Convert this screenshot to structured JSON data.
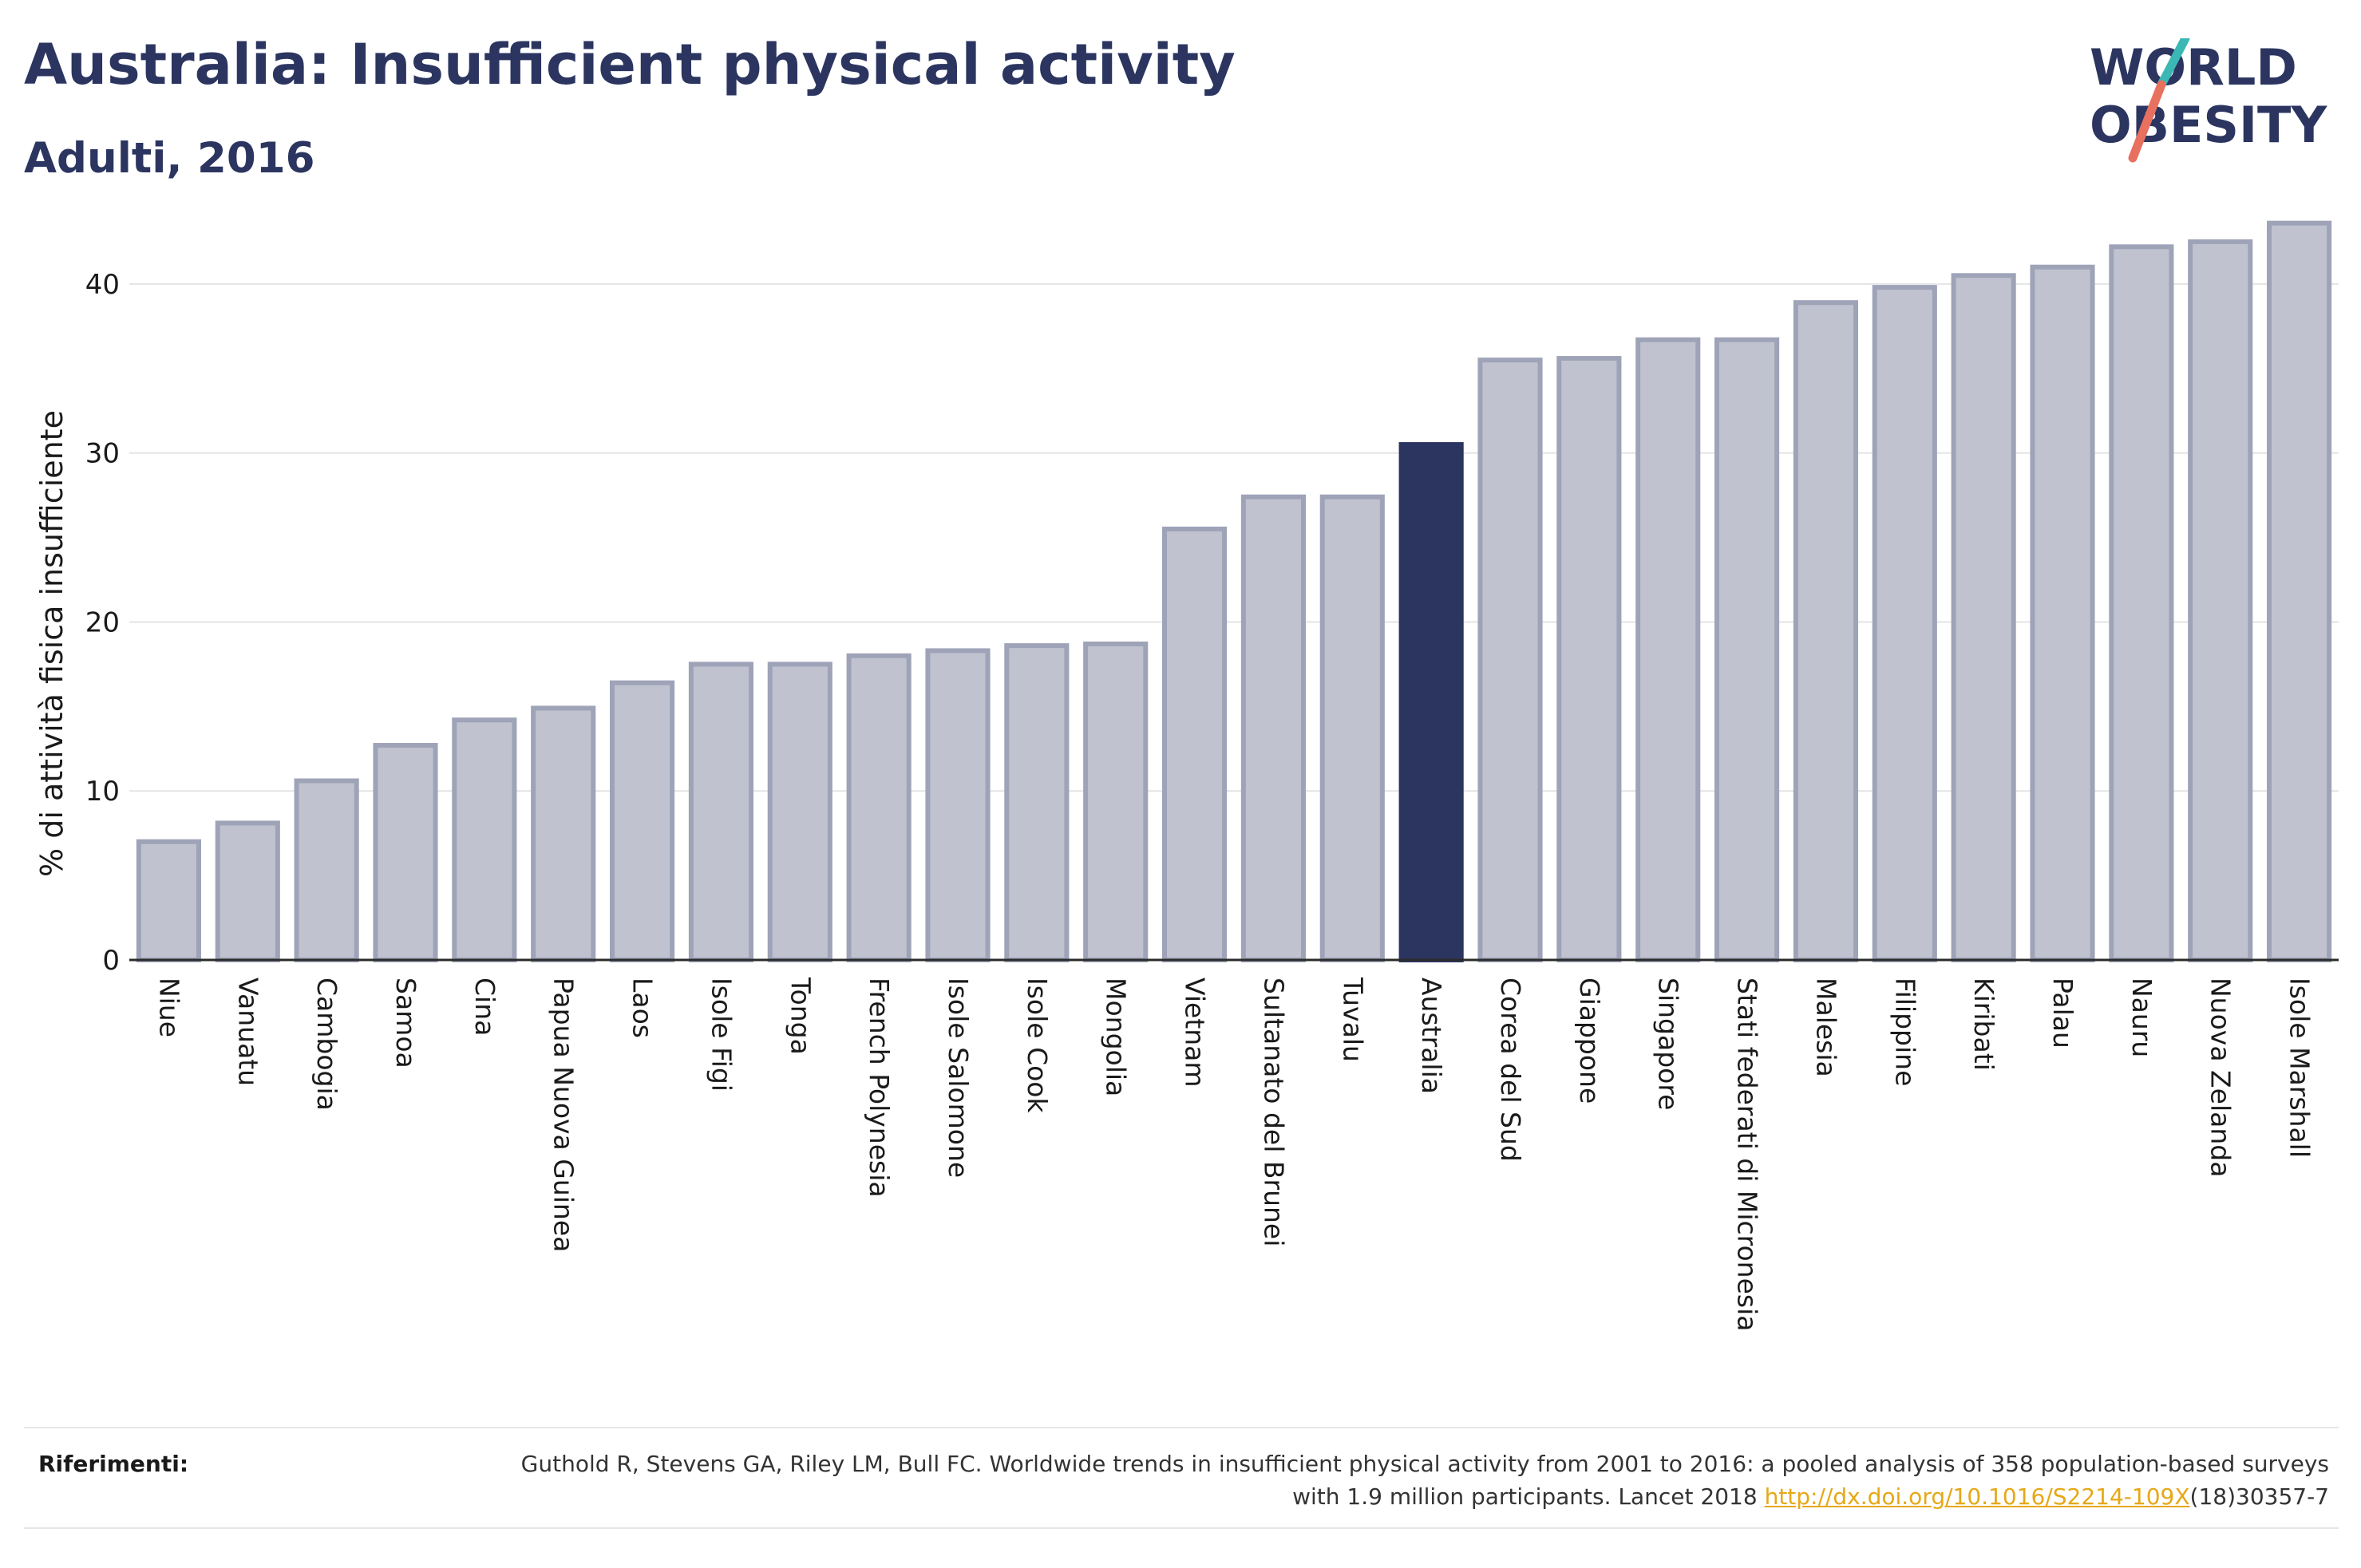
{
  "header": {
    "title": "Australia: Insufficient physical activity",
    "subtitle": "Adulti, 2016"
  },
  "logo": {
    "line1": "WORLD",
    "line2": "OBESITY"
  },
  "chart_data": {
    "type": "bar",
    "ylabel": "% di attività fisica insufficiente",
    "xlabel": "",
    "ylim": [
      0,
      45
    ],
    "yticks": [
      0,
      10,
      20,
      30,
      40
    ],
    "grid": true,
    "highlight": "Australia",
    "categories": [
      "Niue",
      "Vanuatu",
      "Cambogia",
      "Samoa",
      "Cina",
      "Papua Nuova Guinea",
      "Laos",
      "Isole Figi",
      "Tonga",
      "French Polynesia",
      "Isole Salomone",
      "Isole Cook",
      "Mongolia",
      "Vietnam",
      "Sultanato del Brunei",
      "Tuvalu",
      "Australia",
      "Corea del Sud",
      "Giappone",
      "Singapore",
      "Stati federati di Micronesia",
      "Malesia",
      "Filippine",
      "Kiribati",
      "Palau",
      "Nauru",
      "Nuova Zelanda",
      "Isole Marshall"
    ],
    "values": [
      7.0,
      8.1,
      10.6,
      12.7,
      14.2,
      14.9,
      16.4,
      17.5,
      17.5,
      18.0,
      18.3,
      18.6,
      18.7,
      25.5,
      27.4,
      27.4,
      30.5,
      35.5,
      35.6,
      36.7,
      36.7,
      38.9,
      39.8,
      40.5,
      41.0,
      42.2,
      42.5,
      43.6
    ]
  },
  "colors": {
    "bar": "#c0c3cf",
    "bar_outline": "#9ea3b8",
    "highlight": "#2b3560",
    "logo_teal": "#3bb7b4",
    "logo_coral": "#e8705f"
  },
  "references": {
    "label": "Riferimenti:",
    "text_part1": "Guthold R, Stevens GA, Riley LM, Bull FC. Worldwide trends in insufficient physical activity from 2001 to 2016: a pooled analysis of 358 population-based surveys with 1.9 million participants. Lancet 2018 ",
    "link": "http://dx.doi.org/10.1016/S2214-109X",
    "text_part2": "(18)30357-7"
  }
}
